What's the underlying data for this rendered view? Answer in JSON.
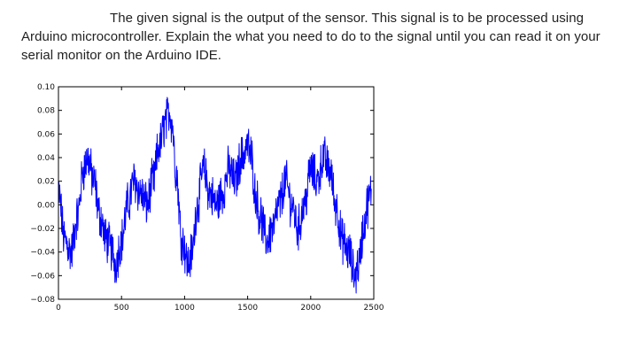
{
  "question": {
    "text": "The given signal is the output of the sensor. This signal is to be processed using Arduino microcontroller. Explain the what you need to do to the signal until you can read it on your serial monitor on the Arduino IDE."
  },
  "chart_data": {
    "type": "line",
    "title": "",
    "xlabel": "",
    "ylabel": "",
    "xlim": [
      0,
      2500
    ],
    "ylim": [
      -0.08,
      0.1
    ],
    "grid": false,
    "x_ticks": [
      "0",
      "500",
      "1000",
      "1500",
      "2000",
      "2500"
    ],
    "y_ticks": [
      "0.10",
      "0.08",
      "0.06",
      "0.04",
      "0.02",
      "0.00",
      "−0.02",
      "−0.04",
      "−0.06",
      "−0.08"
    ],
    "series": [
      {
        "color": "#0000ff",
        "x": [
          0,
          50,
          100,
          150,
          200,
          230,
          280,
          330,
          380,
          430,
          450,
          500,
          550,
          600,
          650,
          700,
          750,
          800,
          850,
          880,
          900,
          930,
          980,
          1030,
          1060,
          1100,
          1150,
          1200,
          1250,
          1300,
          1350,
          1400,
          1450,
          1500,
          1530,
          1560,
          1600,
          1650,
          1700,
          1750,
          1800,
          1850,
          1900,
          1950,
          2000,
          2050,
          2100,
          2150,
          2200,
          2250,
          2300,
          2350,
          2380,
          2420,
          2450,
          2480
        ],
        "values": [
          0.01,
          -0.03,
          -0.04,
          -0.01,
          0.03,
          0.04,
          0.02,
          -0.01,
          -0.03,
          -0.04,
          -0.05,
          -0.03,
          0.0,
          0.02,
          0.01,
          0.0,
          0.02,
          0.05,
          0.07,
          0.08,
          0.07,
          0.03,
          -0.03,
          -0.05,
          -0.04,
          0.0,
          0.03,
          0.01,
          0.0,
          0.01,
          0.03,
          0.02,
          0.04,
          0.05,
          0.04,
          0.01,
          -0.01,
          -0.03,
          -0.02,
          0.0,
          0.02,
          0.0,
          -0.02,
          0.0,
          0.03,
          0.02,
          0.04,
          0.03,
          0.0,
          -0.03,
          -0.04,
          -0.06,
          -0.05,
          -0.02,
          0.0,
          0.01
        ]
      }
    ]
  }
}
